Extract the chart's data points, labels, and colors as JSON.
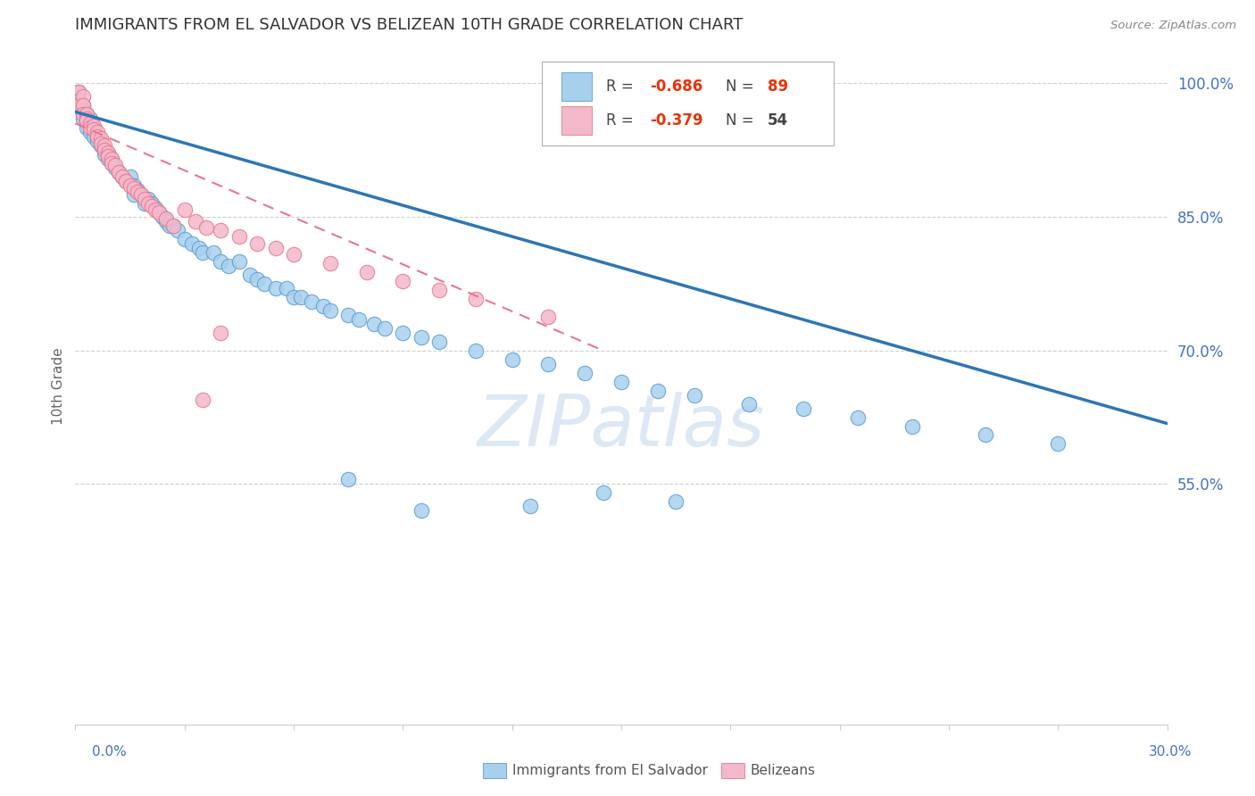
{
  "title": "IMMIGRANTS FROM EL SALVADOR VS BELIZEAN 10TH GRADE CORRELATION CHART",
  "source": "Source: ZipAtlas.com",
  "ylabel": "10th Grade",
  "xmin": 0.0,
  "xmax": 0.3,
  "ymin": 0.28,
  "ymax": 1.04,
  "legend_r1": "-0.686",
  "legend_n1": "89",
  "legend_r2": "-0.379",
  "legend_n2": "54",
  "blue_color": "#a8d0ed",
  "pink_color": "#f4b8cb",
  "blue_edge_color": "#5b9bd5",
  "pink_edge_color": "#e8768e",
  "blue_line_color": "#2e75b6",
  "pink_line_color": "#e8768e",
  "grid_color": "#d0d0d0",
  "ytick_positions": [
    0.55,
    0.7,
    0.85,
    1.0
  ],
  "ytick_labels": [
    "55.0%",
    "70.0%",
    "85.0%",
    "100.0%"
  ],
  "watermark_color": "#dde8f5",
  "blue_scatter_x": [
    0.001,
    0.001,
    0.001,
    0.002,
    0.002,
    0.002,
    0.002,
    0.003,
    0.003,
    0.003,
    0.003,
    0.004,
    0.004,
    0.004,
    0.005,
    0.005,
    0.005,
    0.006,
    0.006,
    0.007,
    0.007,
    0.008,
    0.008,
    0.009,
    0.009,
    0.01,
    0.01,
    0.011,
    0.012,
    0.013,
    0.014,
    0.015,
    0.016,
    0.016,
    0.017,
    0.018,
    0.019,
    0.02,
    0.021,
    0.022,
    0.023,
    0.024,
    0.025,
    0.026,
    0.027,
    0.028,
    0.03,
    0.032,
    0.034,
    0.035,
    0.038,
    0.04,
    0.042,
    0.045,
    0.048,
    0.05,
    0.052,
    0.055,
    0.058,
    0.06,
    0.062,
    0.065,
    0.068,
    0.07,
    0.075,
    0.078,
    0.082,
    0.085,
    0.09,
    0.095,
    0.1,
    0.11,
    0.12,
    0.13,
    0.14,
    0.15,
    0.16,
    0.17,
    0.185,
    0.2,
    0.215,
    0.23,
    0.25,
    0.27,
    0.145,
    0.165,
    0.125,
    0.095,
    0.075
  ],
  "blue_scatter_y": [
    0.99,
    0.98,
    0.975,
    0.975,
    0.97,
    0.965,
    0.96,
    0.965,
    0.96,
    0.955,
    0.95,
    0.96,
    0.955,
    0.945,
    0.95,
    0.945,
    0.94,
    0.94,
    0.935,
    0.93,
    0.935,
    0.925,
    0.92,
    0.92,
    0.915,
    0.915,
    0.91,
    0.905,
    0.9,
    0.895,
    0.89,
    0.895,
    0.885,
    0.875,
    0.88,
    0.875,
    0.865,
    0.87,
    0.865,
    0.86,
    0.855,
    0.85,
    0.845,
    0.84,
    0.84,
    0.835,
    0.825,
    0.82,
    0.815,
    0.81,
    0.81,
    0.8,
    0.795,
    0.8,
    0.785,
    0.78,
    0.775,
    0.77,
    0.77,
    0.76,
    0.76,
    0.755,
    0.75,
    0.745,
    0.74,
    0.735,
    0.73,
    0.725,
    0.72,
    0.715,
    0.71,
    0.7,
    0.69,
    0.685,
    0.675,
    0.665,
    0.655,
    0.65,
    0.64,
    0.635,
    0.625,
    0.615,
    0.605,
    0.595,
    0.54,
    0.53,
    0.525,
    0.52,
    0.555
  ],
  "pink_scatter_x": [
    0.001,
    0.001,
    0.001,
    0.002,
    0.002,
    0.002,
    0.003,
    0.003,
    0.003,
    0.004,
    0.004,
    0.005,
    0.005,
    0.006,
    0.006,
    0.007,
    0.007,
    0.008,
    0.008,
    0.009,
    0.009,
    0.01,
    0.01,
    0.011,
    0.012,
    0.013,
    0.014,
    0.015,
    0.016,
    0.017,
    0.018,
    0.019,
    0.02,
    0.021,
    0.022,
    0.023,
    0.025,
    0.027,
    0.03,
    0.033,
    0.036,
    0.04,
    0.045,
    0.05,
    0.055,
    0.06,
    0.07,
    0.08,
    0.09,
    0.1,
    0.11,
    0.13,
    0.04,
    0.035
  ],
  "pink_scatter_y": [
    0.99,
    0.98,
    0.975,
    0.985,
    0.975,
    0.965,
    0.965,
    0.96,
    0.958,
    0.955,
    0.95,
    0.952,
    0.948,
    0.945,
    0.94,
    0.938,
    0.932,
    0.93,
    0.925,
    0.922,
    0.918,
    0.915,
    0.91,
    0.908,
    0.9,
    0.895,
    0.89,
    0.885,
    0.882,
    0.878,
    0.875,
    0.87,
    0.865,
    0.862,
    0.858,
    0.855,
    0.848,
    0.84,
    0.858,
    0.845,
    0.838,
    0.835,
    0.828,
    0.82,
    0.815,
    0.808,
    0.798,
    0.788,
    0.778,
    0.768,
    0.758,
    0.738,
    0.72,
    0.645
  ],
  "blue_line_x0": 0.0,
  "blue_line_x1": 0.3,
  "blue_line_y0": 0.968,
  "blue_line_y1": 0.618,
  "pink_line_x0": 0.0,
  "pink_line_x1": 0.145,
  "pink_line_y0": 0.955,
  "pink_line_y1": 0.7
}
